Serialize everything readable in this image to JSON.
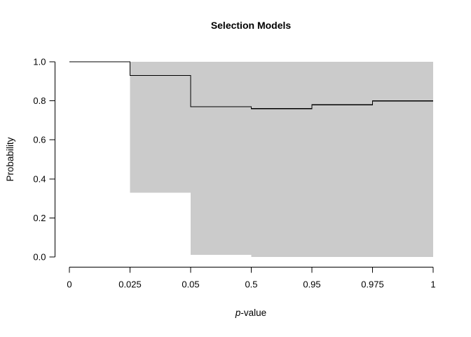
{
  "chart_data": {
    "type": "step",
    "title": "Selection Models",
    "xlabel": "p-value",
    "xlabel_italic_prefix": "p",
    "xlabel_rest": "-value",
    "ylabel": "Probability",
    "x_tick_labels": [
      "0",
      "0.025",
      "0.05",
      "0.5",
      "0.95",
      "0.975",
      "1"
    ],
    "y_tick_labels": [
      "0.0",
      "0.2",
      "0.4",
      "0.6",
      "0.8",
      "1.0"
    ],
    "y_tick_values": [
      0.0,
      0.2,
      0.4,
      0.6,
      0.8,
      1.0
    ],
    "ylim": [
      0,
      1
    ],
    "x_scale": "equally-spaced-ticks",
    "grid": false,
    "legend": "none",
    "colors": {
      "band": "#cbcbcb",
      "line": "#000000",
      "axis": "#000000",
      "background": "#ffffff"
    },
    "series": [
      {
        "name": "confidence-band",
        "type": "step-area",
        "segments": [
          {
            "x_from": "0",
            "x_to": "0.025",
            "lower": 1.0,
            "upper": 1.0
          },
          {
            "x_from": "0.025",
            "x_to": "0.05",
            "lower": 0.33,
            "upper": 1.0
          },
          {
            "x_from": "0.05",
            "x_to": "0.5",
            "lower": 0.01,
            "upper": 1.0
          },
          {
            "x_from": "0.5",
            "x_to": "0.95",
            "lower": 0.0,
            "upper": 1.0
          },
          {
            "x_from": "0.95",
            "x_to": "0.975",
            "lower": 0.0,
            "upper": 1.0
          },
          {
            "x_from": "0.975",
            "x_to": "1",
            "lower": 0.0,
            "upper": 1.0
          }
        ]
      },
      {
        "name": "estimate",
        "type": "step-line",
        "segments": [
          {
            "x_from": "0",
            "x_to": "0.025",
            "value": 1.0
          },
          {
            "x_from": "0.025",
            "x_to": "0.05",
            "value": 0.93
          },
          {
            "x_from": "0.05",
            "x_to": "0.5",
            "value": 0.77
          },
          {
            "x_from": "0.5",
            "x_to": "0.95",
            "value": 0.76
          },
          {
            "x_from": "0.95",
            "x_to": "0.975",
            "value": 0.78
          },
          {
            "x_from": "0.975",
            "x_to": "1",
            "value": 0.8
          }
        ]
      }
    ]
  }
}
